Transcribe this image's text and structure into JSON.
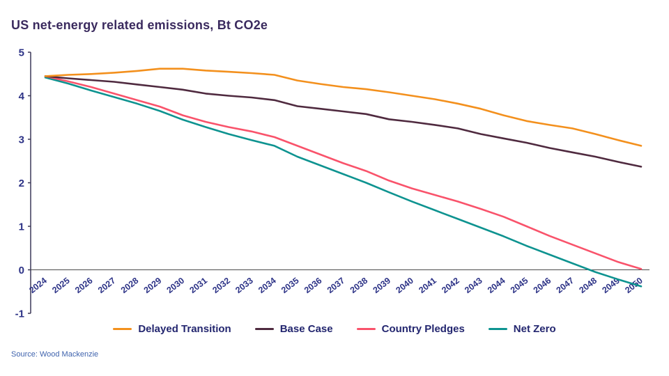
{
  "page": {
    "title": "US net-energy related emissions, Bt CO2e",
    "source": "Source: Wood Mackenzie"
  },
  "style": {
    "axis_line": "#3c3858",
    "zero_line": "#4b4b4b",
    "tick_label_color": "#2c3286",
    "title_color": "#3a2a5e",
    "legend_text_color": "#23266f",
    "source_color": "#3f63ad"
  },
  "chart_data": {
    "type": "line",
    "title": "US net-energy related emissions, Bt CO2e",
    "xlabel": "",
    "ylabel": "Bt CO2e",
    "x": [
      2024,
      2025,
      2026,
      2027,
      2028,
      2029,
      2030,
      2031,
      2032,
      2033,
      2034,
      2035,
      2036,
      2037,
      2038,
      2039,
      2040,
      2041,
      2042,
      2043,
      2044,
      2045,
      2046,
      2047,
      2048,
      2049,
      2050
    ],
    "ylim": [
      -1,
      5
    ],
    "yticks": [
      5,
      4,
      3,
      2,
      1,
      0,
      -1
    ],
    "grid": false,
    "legend_position": "bottom",
    "series": [
      {
        "name": "Delayed Transition",
        "color": "#F3901D",
        "values": [
          4.45,
          4.48,
          4.5,
          4.53,
          4.57,
          4.62,
          4.62,
          4.58,
          4.55,
          4.52,
          4.48,
          4.35,
          4.27,
          4.2,
          4.15,
          4.08,
          4.0,
          3.92,
          3.82,
          3.7,
          3.55,
          3.42,
          3.33,
          3.25,
          3.12,
          2.98,
          2.85
        ]
      },
      {
        "name": "Base Case",
        "color": "#4F2A3F",
        "values": [
          4.45,
          4.4,
          4.36,
          4.32,
          4.26,
          4.2,
          4.14,
          4.05,
          4.0,
          3.96,
          3.9,
          3.76,
          3.7,
          3.64,
          3.58,
          3.46,
          3.4,
          3.33,
          3.25,
          3.12,
          3.02,
          2.92,
          2.8,
          2.7,
          2.6,
          2.48,
          2.37
        ]
      },
      {
        "name": "Country Pledges",
        "color": "#F9536B",
        "values": [
          4.45,
          4.33,
          4.2,
          4.05,
          3.9,
          3.75,
          3.55,
          3.4,
          3.28,
          3.18,
          3.05,
          2.85,
          2.65,
          2.45,
          2.27,
          2.05,
          1.87,
          1.72,
          1.57,
          1.4,
          1.22,
          1.0,
          0.78,
          0.58,
          0.38,
          0.18,
          0.02
        ]
      },
      {
        "name": "Net Zero",
        "color": "#0E9390",
        "values": [
          4.42,
          4.28,
          4.12,
          3.97,
          3.82,
          3.65,
          3.45,
          3.28,
          3.12,
          2.98,
          2.85,
          2.6,
          2.4,
          2.2,
          2.0,
          1.78,
          1.57,
          1.37,
          1.17,
          0.97,
          0.77,
          0.55,
          0.35,
          0.15,
          -0.05,
          -0.22,
          -0.38
        ]
      }
    ]
  }
}
